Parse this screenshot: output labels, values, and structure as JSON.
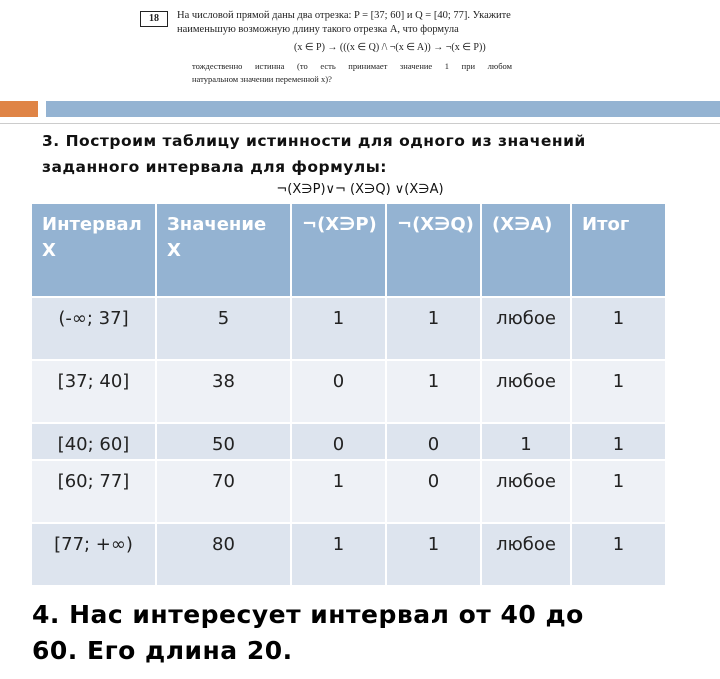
{
  "task": {
    "number": "18",
    "line1": "На числовой прямой даны два отрезка: P = [37; 60] и Q = [40; 77]. Укажите",
    "line2": "наименьшую возможную длину такого отрезка A, что формула",
    "formula": "(x ∈ P) → (((x ∈ Q) /\\ ¬(x ∈ A)) → ¬(x ∈ P))",
    "line3": "тождественно истинна (то есть принимает значение 1 при любом",
    "line4": "натуральном значении переменной x)?"
  },
  "heading": {
    "line1": "3. Построим таблицу истинности для одного из значений",
    "line2": "заданного интервала для формулы:"
  },
  "formula": "¬(Х∋Р)∨¬ (Х∋Q) ∨(Х∋А)",
  "table": {
    "headers": [
      "Интервал Х",
      "Значение Х",
      "¬(Х∋Р)",
      "¬(Х∋Q)",
      "(Х∋А)",
      "Итог"
    ],
    "rows": [
      [
        "(-∞; 37]",
        "5",
        "1",
        "1",
        "любое",
        "1"
      ],
      [
        "[37; 40]",
        "38",
        "0",
        "1",
        "любое",
        "1"
      ],
      [
        "[40; 60]",
        "50",
        "0",
        "0",
        "1",
        "1"
      ],
      [
        "[60; 77]",
        "70",
        "1",
        "0",
        "любое",
        "1"
      ],
      [
        "[77; +∞)",
        "80",
        "1",
        "1",
        "любое",
        "1"
      ]
    ]
  },
  "conclusion": {
    "line1": "4. Нас интересует интервал от 40 до",
    "line2": "60. Его длина 20."
  }
}
